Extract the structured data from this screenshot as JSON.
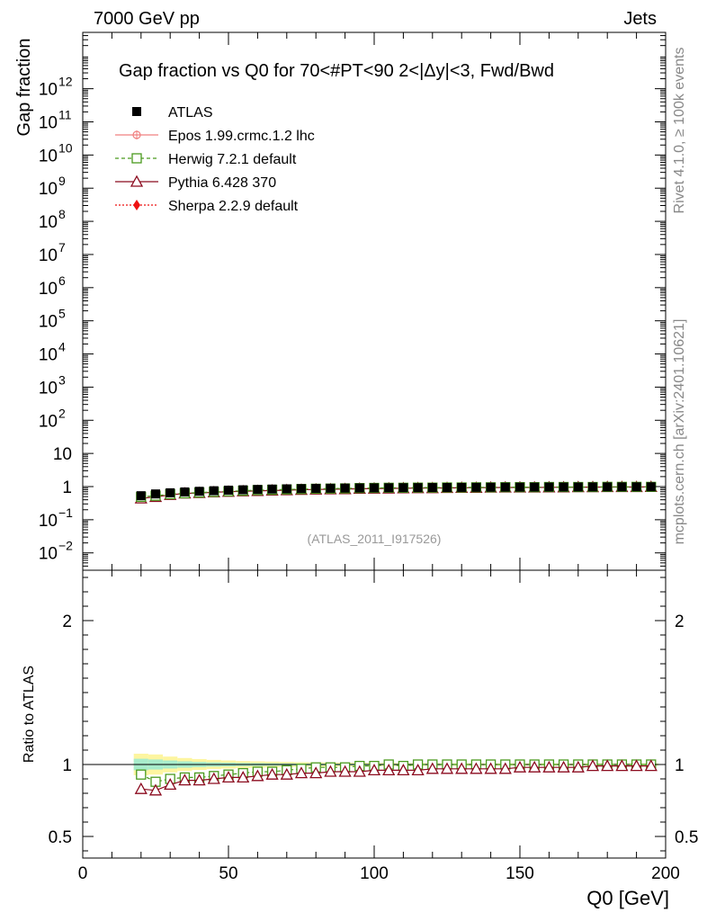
{
  "header": {
    "left": "7000 GeV pp",
    "right": "Jets"
  },
  "side_labels": {
    "rivet": "Rivet 4.1.0, ≥ 100k events",
    "mcplots": "mcplots.cern.ch [arXiv:2401.10621]"
  },
  "chart_data": [
    {
      "panel": "main",
      "type": "scatter",
      "title": "Gap fraction vs Q0 for 70<#PT<90  2<|Δy|<3, Fwd/Bwd",
      "ylabel": "Gap fraction",
      "yscale": "log",
      "ylim": [
        0.003,
        50000000000000
      ],
      "y_ticks": [
        {
          "value": 0.01,
          "base": "10",
          "exp": "−2"
        },
        {
          "value": 0.1,
          "base": "10",
          "exp": "−1"
        },
        {
          "value": 1,
          "base": "1",
          "exp": ""
        },
        {
          "value": 10,
          "base": "10",
          "exp": ""
        },
        {
          "value": 100,
          "base": "10",
          "exp": "2"
        },
        {
          "value": 1000,
          "base": "10",
          "exp": "3"
        },
        {
          "value": 10000,
          "base": "10",
          "exp": "4"
        },
        {
          "value": 100000,
          "base": "10",
          "exp": "5"
        },
        {
          "value": 1000000,
          "base": "10",
          "exp": "6"
        },
        {
          "value": 10000000,
          "base": "10",
          "exp": "7"
        },
        {
          "value": 100000000,
          "base": "10",
          "exp": "8"
        },
        {
          "value": 1000000000,
          "base": "10",
          "exp": "9"
        },
        {
          "value": 10000000000,
          "base": "10",
          "exp": "10"
        },
        {
          "value": 100000000000,
          "base": "10",
          "exp": "11"
        },
        {
          "value": 1000000000000,
          "base": "10",
          "exp": "12"
        }
      ],
      "watermark": "(ATLAS_2011_I917526)",
      "x": [
        20,
        25,
        30,
        35,
        40,
        45,
        50,
        55,
        60,
        65,
        70,
        75,
        80,
        85,
        90,
        95,
        100,
        105,
        110,
        115,
        120,
        125,
        130,
        135,
        140,
        145,
        150,
        155,
        160,
        165,
        170,
        175,
        180,
        185,
        190,
        195
      ],
      "series": [
        {
          "name": "ATLAS",
          "marker": "square-filled",
          "color": "#000000",
          "values": [
            0.53,
            0.6,
            0.65,
            0.69,
            0.72,
            0.75,
            0.78,
            0.8,
            0.82,
            0.84,
            0.855,
            0.87,
            0.88,
            0.89,
            0.9,
            0.91,
            0.915,
            0.92,
            0.925,
            0.93,
            0.935,
            0.94,
            0.945,
            0.95,
            0.955,
            0.96,
            0.962,
            0.965,
            0.968,
            0.97,
            0.972,
            0.975,
            0.977,
            0.98,
            0.982,
            0.985
          ]
        },
        {
          "name": "Epos 1.99.crmc.1.2 lhc",
          "marker": "cross-circle",
          "color": "#f08080",
          "values": []
        },
        {
          "name": "Herwig 7.2.1 default",
          "marker": "square-open",
          "color": "#4a9a1e",
          "values": [
            0.49,
            0.53,
            0.59,
            0.63,
            0.66,
            0.69,
            0.72,
            0.75,
            0.78,
            0.8,
            0.82,
            0.84,
            0.86,
            0.87,
            0.88,
            0.9,
            0.91,
            0.92,
            0.92,
            0.93,
            0.93,
            0.94,
            0.94,
            0.95,
            0.95,
            0.96,
            0.96,
            0.96,
            0.97,
            0.97,
            0.97,
            0.97,
            0.98,
            0.98,
            0.98,
            0.98
          ]
        },
        {
          "name": "Pythia 6.428 370",
          "marker": "triangle-open",
          "color": "#8b0a1e",
          "values": [
            0.44,
            0.49,
            0.56,
            0.62,
            0.64,
            0.67,
            0.7,
            0.72,
            0.74,
            0.76,
            0.78,
            0.8,
            0.82,
            0.83,
            0.84,
            0.86,
            0.87,
            0.88,
            0.89,
            0.9,
            0.9,
            0.91,
            0.92,
            0.92,
            0.93,
            0.94,
            0.94,
            0.94,
            0.95,
            0.95,
            0.96,
            0.96,
            0.97,
            0.97,
            0.97,
            0.98
          ]
        },
        {
          "name": "Sherpa 2.2.9 default",
          "marker": "diamond-filled",
          "color": "#ee1111",
          "values": []
        }
      ]
    },
    {
      "panel": "ratio",
      "type": "line",
      "ylabel": "Ratio to ATLAS",
      "xlabel": "Q0 [GeV]",
      "xlim": [
        0,
        200
      ],
      "x_ticks": [
        0,
        50,
        100,
        150,
        200
      ],
      "x_tick_labels": [
        "0",
        "50",
        "100",
        "150",
        "200"
      ],
      "ylim": [
        0.35,
        2.35
      ],
      "y_ticks": [
        0.5,
        1,
        2
      ],
      "y_tick_labels": [
        "0.5",
        "1",
        "2"
      ],
      "x": [
        20,
        25,
        30,
        35,
        40,
        45,
        50,
        55,
        60,
        65,
        70,
        75,
        80,
        85,
        90,
        95,
        100,
        105,
        110,
        115,
        120,
        125,
        130,
        135,
        140,
        145,
        150,
        155,
        160,
        165,
        170,
        175,
        180,
        185,
        190,
        195
      ],
      "band": {
        "outer": [
          0.075,
          0.07,
          0.055,
          0.045,
          0.038,
          0.032,
          0.028,
          0.024,
          0.022,
          0.02,
          0.018,
          0.016,
          0.015,
          0.014,
          0.013,
          0.012,
          0.011,
          0.011,
          0.01,
          0.01,
          0.01,
          0.009,
          0.009,
          0.009,
          0.008,
          0.008,
          0.008,
          0.008,
          0.008,
          0.008,
          0.008,
          0.008,
          0.008,
          0.008,
          0.008,
          0.008
        ],
        "inner": [
          0.04,
          0.035,
          0.028,
          0.022,
          0.018,
          0.015,
          0.013,
          0.011,
          0.01,
          0.009,
          0.008,
          0.007,
          0.007,
          0.006,
          0.006,
          0.006,
          0.005,
          0.005,
          0.005,
          0.005,
          0.005,
          0.005,
          0.004,
          0.004,
          0.004,
          0.004,
          0.004,
          0.004,
          0.004,
          0.004,
          0.004,
          0.004,
          0.004,
          0.004,
          0.004,
          0.004
        ],
        "outer_color": "#fdf5a0",
        "inner_color": "#a8eccb"
      },
      "series": [
        {
          "name": "Herwig 7.2.1 default",
          "color": "#4a9a1e",
          "values": [
            0.93,
            0.88,
            0.9,
            0.91,
            0.91,
            0.92,
            0.93,
            0.94,
            0.95,
            0.95,
            0.96,
            0.97,
            0.98,
            0.98,
            0.98,
            0.99,
            0.99,
            1.0,
            0.99,
            1.0,
            1.0,
            1.0,
            1.0,
            1.0,
            1.0,
            1.0,
            1.0,
            1.0,
            1.0,
            1.0,
            1.0,
            1.0,
            1.0,
            1.0,
            1.0,
            1.0
          ]
        },
        {
          "name": "Pythia 6.428 370",
          "color": "#8b0a1e",
          "values": [
            0.83,
            0.82,
            0.86,
            0.89,
            0.89,
            0.9,
            0.91,
            0.91,
            0.92,
            0.93,
            0.93,
            0.94,
            0.94,
            0.95,
            0.95,
            0.95,
            0.96,
            0.96,
            0.96,
            0.96,
            0.97,
            0.97,
            0.97,
            0.97,
            0.97,
            0.97,
            0.98,
            0.98,
            0.98,
            0.98,
            0.98,
            0.99,
            0.99,
            0.99,
            0.99,
            0.99
          ],
          "errors": [
            0.025,
            0.022,
            0.015,
            0.012,
            0.01,
            0.009,
            0.008,
            0.007,
            0.007,
            0.006,
            0.006,
            0.006,
            0.005,
            0.005,
            0.005,
            0.005,
            0.005,
            0.005,
            0.005,
            0.005,
            0.005,
            0.005,
            0.005,
            0.005,
            0.005,
            0.005,
            0.005,
            0.005,
            0.005,
            0.005,
            0.005,
            0.005,
            0.005,
            0.005,
            0.005,
            0.005
          ]
        }
      ]
    }
  ]
}
